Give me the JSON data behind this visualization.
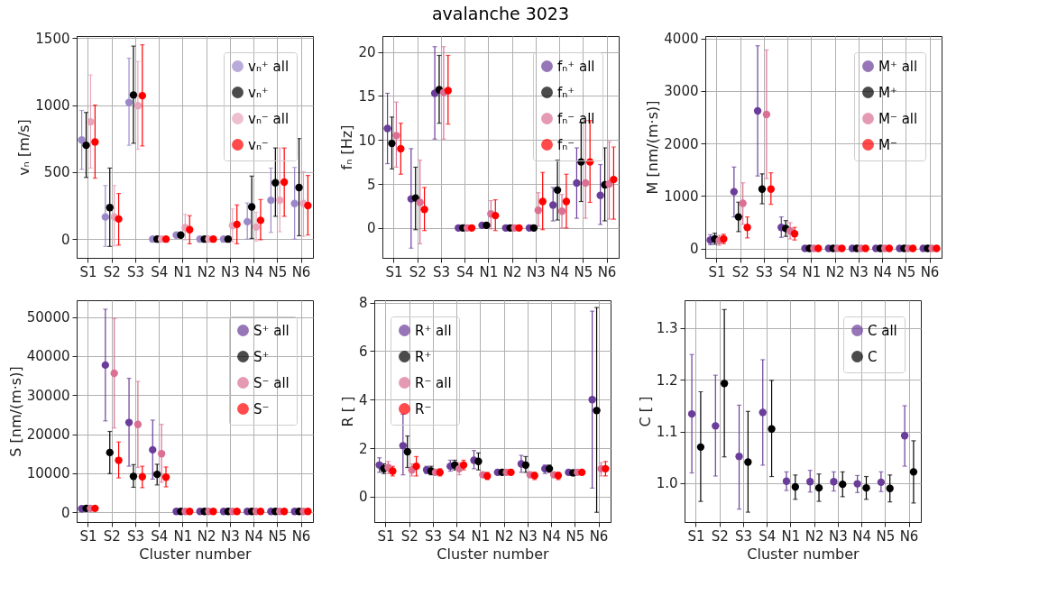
{
  "chart_data": [
    {
      "type": "scatter",
      "ylabel": "vₙ [m/s]",
      "categories": [
        "S1",
        "S2",
        "S3",
        "S4",
        "N1",
        "N2",
        "N3",
        "N4",
        "N5",
        "N6"
      ],
      "ylim": [
        -140,
        1515
      ],
      "yticks": [
        0,
        500,
        1000,
        1500
      ],
      "grid": true,
      "legend": "top right",
      "marker": "circle",
      "series": [
        {
          "name": "vₙ⁺ all",
          "color": "#9c88c9",
          "values": [
            740,
            165,
            1020,
            0,
            30,
            0,
            0,
            130,
            290,
            265
          ],
          "errors": [
            [
              520,
              960
            ],
            [
              -55,
              400
            ],
            [
              700,
              1350
            ],
            null,
            null,
            null,
            null,
            [
              0,
              270
            ],
            [
              50,
              530
            ],
            [
              0,
              535
            ]
          ]
        },
        {
          "name": "vₙ⁺",
          "color": "#000000",
          "values": [
            700,
            235,
            1075,
            0,
            30,
            0,
            0,
            240,
            420,
            385
          ],
          "errors": [
            [
              460,
              945
            ],
            [
              -55,
              530
            ],
            [
              715,
              1440
            ],
            null,
            null,
            null,
            null,
            [
              5,
              470
            ],
            [
              170,
              680
            ],
            [
              25,
              750
            ]
          ]
        },
        {
          "name": "vₙ⁻ all",
          "color": "#e8a4ba",
          "values": [
            875,
            165,
            995,
            0,
            85,
            0,
            100,
            90,
            290,
            265
          ],
          "errors": [
            [
              530,
              1225
            ],
            [
              -50,
              400
            ],
            [
              670,
              1325
            ],
            null,
            [
              -5,
              185
            ],
            null,
            [
              -20,
              225
            ],
            [
              -15,
              200
            ],
            [
              55,
              680
            ],
            [
              20,
              505
            ]
          ]
        },
        {
          "name": "vₙ⁻",
          "color": "#ff0000",
          "values": [
            725,
            150,
            1070,
            0,
            70,
            0,
            110,
            140,
            425,
            250
          ],
          "errors": [
            [
              455,
              1000
            ],
            [
              -45,
              340
            ],
            [
              695,
              1450
            ],
            null,
            [
              -35,
              175
            ],
            null,
            [
              -35,
              255
            ],
            [
              -5,
              295
            ],
            [
              170,
              680
            ],
            [
              30,
              475
            ]
          ]
        }
      ]
    },
    {
      "type": "scatter",
      "title": "avalanche 3023",
      "ylabel": "fₙ [Hz]",
      "categories": [
        "S1",
        "S2",
        "S3",
        "S4",
        "N1",
        "N2",
        "N3",
        "N4",
        "N5",
        "N6"
      ],
      "ylim": [
        -3.4,
        21.8
      ],
      "yticks": [
        0,
        5,
        10,
        15,
        20
      ],
      "grid": true,
      "legend": "top right",
      "marker": "circle",
      "series": [
        {
          "name": "fₙ⁺ all",
          "color": "#6a3d9a",
          "values": [
            11.3,
            3.3,
            15.3,
            0,
            0.3,
            0,
            0,
            2.6,
            5.1,
            3.7
          ],
          "errors": [
            [
              7.3,
              15.3
            ],
            [
              -2.3,
              9.0
            ],
            [
              10.1,
              20.6
            ],
            null,
            null,
            null,
            null,
            [
              0.8,
              4.6
            ],
            [
              1.1,
              9.1
            ],
            [
              0.4,
              7.2
            ]
          ]
        },
        {
          "name": "fₙ⁺",
          "color": "#000000",
          "values": [
            9.6,
            3.4,
            15.7,
            0,
            0.3,
            0,
            0,
            4.3,
            7.5,
            4.9
          ],
          "errors": [
            [
              6.7,
              12.6
            ],
            [
              -0.2,
              6.9
            ],
            [
              11.9,
              19.6
            ],
            null,
            null,
            null,
            null,
            [
              0.9,
              7.7
            ],
            [
              3.0,
              12.0
            ],
            [
              0.8,
              9.1
            ]
          ]
        },
        {
          "name": "fₙ⁻ all",
          "color": "#db7093",
          "values": [
            10.5,
            2.9,
            15.4,
            0,
            1.6,
            0,
            2.0,
            1.9,
            5.1,
            5.0
          ],
          "errors": [
            [
              6.9,
              14.3
            ],
            [
              -1.8,
              7.7
            ],
            [
              10.1,
              20.6
            ],
            null,
            [
              -0.1,
              3.1
            ],
            null,
            [
              0.2,
              4.0
            ],
            [
              0,
              3.8
            ],
            [
              1.1,
              12.2
            ],
            [
              1.0,
              9.8
            ]
          ]
        },
        {
          "name": "fₙ⁻",
          "color": "#ff0000",
          "values": [
            9.0,
            2.1,
            15.6,
            0,
            1.4,
            0,
            3.0,
            3.0,
            7.5,
            5.5
          ],
          "errors": [
            [
              6.1,
              11.9
            ],
            [
              -0.3,
              4.6
            ],
            [
              11.8,
              19.6
            ],
            null,
            [
              -0.3,
              3.2
            ],
            null,
            [
              -0.2,
              6.3
            ],
            [
              0,
              6.1
            ],
            [
              2.9,
              12.2
            ],
            [
              1.0,
              9.2
            ]
          ]
        }
      ]
    },
    {
      "type": "scatter",
      "ylabel": "M  [nm/(m·s)]",
      "categories": [
        "S1",
        "S2",
        "S3",
        "S4",
        "N1",
        "N2",
        "N3",
        "N4",
        "N5",
        "N6"
      ],
      "ylim": [
        -180,
        4045
      ],
      "yticks": [
        0,
        1000,
        2000,
        3000,
        4000
      ],
      "grid": true,
      "legend": "top right",
      "marker": "circle",
      "series": [
        {
          "name": "M⁺ all",
          "color": "#6a3d9a",
          "values": [
            160,
            1080,
            2620,
            400,
            0,
            0,
            0,
            0,
            0,
            0
          ],
          "errors": [
            [
              70,
              260
            ],
            [
              600,
              1550
            ],
            [
              1380,
              3860
            ],
            [
              210,
              600
            ],
            null,
            null,
            null,
            null,
            null,
            null
          ]
        },
        {
          "name": "M⁺",
          "color": "#000000",
          "values": [
            180,
            600,
            1130,
            380,
            0,
            0,
            0,
            0,
            0,
            0
          ],
          "errors": [
            [
              80,
              290
            ],
            [
              320,
              880
            ],
            [
              850,
              1420
            ],
            [
              230,
              530
            ],
            null,
            null,
            null,
            null,
            null,
            null
          ]
        },
        {
          "name": "M⁻ all",
          "color": "#db7093",
          "values": [
            150,
            860,
            2550,
            330,
            0,
            0,
            0,
            0,
            0,
            0
          ],
          "errors": [
            [
              60,
              250
            ],
            [
              460,
              1250
            ],
            [
              1330,
              3780
            ],
            [
              180,
              490
            ],
            null,
            null,
            null,
            null,
            null,
            null
          ]
        },
        {
          "name": "M⁻",
          "color": "#ff0000",
          "values": [
            180,
            400,
            1130,
            280,
            0,
            0,
            0,
            0,
            0,
            0
          ],
          "errors": [
            [
              90,
              270
            ],
            [
              200,
              600
            ],
            [
              840,
              1440
            ],
            [
              160,
              400
            ],
            null,
            null,
            null,
            null,
            null,
            null
          ]
        }
      ]
    },
    {
      "type": "scatter",
      "xlabel": "Cluster number",
      "ylabel": "S [nm/(m·s)]",
      "categories": [
        "S1",
        "S2",
        "S3",
        "S4",
        "N1",
        "N2",
        "N3",
        "N4",
        "N5",
        "N6"
      ],
      "ylim": [
        -2500,
        54300
      ],
      "yticks": [
        0,
        10000,
        20000,
        30000,
        40000,
        50000
      ],
      "grid": true,
      "legend": "top right",
      "marker": "circle",
      "series": [
        {
          "name": "S⁺ all",
          "color": "#6a3d9a",
          "values": [
            900,
            37700,
            23000,
            16000,
            200,
            200,
            200,
            200,
            200,
            200
          ],
          "errors": [
            null,
            [
              23400,
              52000
            ],
            [
              11800,
              34300
            ],
            [
              8500,
              23600
            ],
            null,
            null,
            null,
            null,
            null,
            null
          ]
        },
        {
          "name": "S⁺",
          "color": "#000000",
          "values": [
            1000,
            15300,
            9200,
            9700,
            200,
            200,
            200,
            200,
            200,
            200
          ],
          "errors": [
            null,
            [
              9900,
              20700
            ],
            [
              6400,
              12200
            ],
            [
              7000,
              12300
            ],
            null,
            null,
            null,
            null,
            null,
            null
          ]
        },
        {
          "name": "S⁻ all",
          "color": "#db7093",
          "values": [
            1000,
            35600,
            22500,
            15000,
            200,
            200,
            200,
            200,
            200,
            200
          ],
          "errors": [
            null,
            [
              21600,
              49600
            ],
            [
              11500,
              33500
            ],
            [
              7700,
              22500
            ],
            null,
            null,
            null,
            null,
            null,
            null
          ]
        },
        {
          "name": "S⁻",
          "color": "#ff0000",
          "values": [
            1000,
            13300,
            9100,
            9000,
            200,
            200,
            200,
            200,
            200,
            200
          ],
          "errors": [
            null,
            [
              8800,
              18000
            ],
            [
              6300,
              11800
            ],
            [
              6500,
              11600
            ],
            null,
            null,
            null,
            null,
            null,
            null
          ]
        }
      ]
    },
    {
      "type": "scatter",
      "xlabel": "Cluster number",
      "ylabel": "R [ ]",
      "categories": [
        "S1",
        "S2",
        "S3",
        "S4",
        "N1",
        "N2",
        "N3",
        "N4",
        "N5",
        "N6"
      ],
      "ylim": [
        -1.05,
        8.1
      ],
      "yticks": [
        0,
        2,
        4,
        6,
        8
      ],
      "grid": true,
      "legend": "top left",
      "marker": "circle",
      "series": [
        {
          "name": "R⁺ all",
          "color": "#6a3d9a",
          "values": [
            1.3,
            2.1,
            1.1,
            1.25,
            1.5,
            1.0,
            1.35,
            1.15,
            1.0,
            4.0
          ],
          "errors": [
            [
              1.0,
              1.6
            ],
            [
              0.9,
              3.4
            ],
            [
              0.95,
              1.25
            ],
            [
              1.05,
              1.5
            ],
            [
              1.15,
              1.9
            ],
            [
              0.9,
              1.1
            ],
            [
              1.0,
              1.7
            ],
            [
              0.95,
              1.3
            ],
            [
              0.9,
              1.1
            ],
            [
              0.35,
              7.65
            ]
          ]
        },
        {
          "name": "R⁺",
          "color": "#000000",
          "values": [
            1.15,
            1.85,
            1.05,
            1.3,
            1.45,
            1.0,
            1.3,
            1.15,
            0.98,
            3.55
          ],
          "errors": [
            [
              0.95,
              1.35
            ],
            [
              1.2,
              2.5
            ],
            [
              0.9,
              1.25
            ],
            [
              1.1,
              1.5
            ],
            [
              1.1,
              1.8
            ],
            null,
            [
              1.0,
              1.65
            ],
            [
              1.0,
              1.3
            ],
            null,
            [
              -0.65,
              7.8
            ]
          ]
        },
        {
          "name": "R⁻ all",
          "color": "#db7093",
          "values": [
            1.2,
            1.1,
            1.0,
            1.15,
            0.9,
            1.0,
            0.9,
            0.9,
            1.0,
            1.15
          ],
          "errors": [
            [
              0.95,
              1.45
            ],
            [
              0.85,
              1.35
            ],
            null,
            [
              0.9,
              1.4
            ],
            null,
            null,
            null,
            null,
            null,
            [
              0.85,
              1.4
            ]
          ]
        },
        {
          "name": "R⁻",
          "color": "#ff0000",
          "values": [
            1.05,
            1.25,
            1.0,
            1.3,
            0.85,
            1.0,
            0.87,
            0.87,
            1.0,
            1.15
          ],
          "errors": [
            [
              0.85,
              1.25
            ],
            [
              0.85,
              1.65
            ],
            [
              0.85,
              1.15
            ],
            [
              1.1,
              1.5
            ],
            [
              0.7,
              1.0
            ],
            [
              0.9,
              1.1
            ],
            [
              0.7,
              1.0
            ],
            [
              0.7,
              1.0
            ],
            [
              0.9,
              1.1
            ],
            [
              0.85,
              1.45
            ]
          ]
        }
      ]
    },
    {
      "type": "scatter",
      "xlabel": "Cluster number",
      "ylabel": "C [ ]",
      "categories": [
        "S1",
        "S2",
        "S3",
        "S4",
        "N1",
        "N2",
        "N3",
        "N4",
        "N5",
        "N6"
      ],
      "ylim": [
        0.925,
        1.354
      ],
      "yticks": [
        {
          "value": 1,
          "label": "1.0"
        },
        1.1,
        1.2,
        1.3
      ],
      "grid": true,
      "legend": "top right",
      "marker": "circle",
      "series": [
        {
          "name": "C all",
          "color": "#6a3d9a",
          "values": [
            1.134,
            1.111,
            1.052,
            1.137,
            1.004,
            1.003,
            1.003,
            0.999,
            1.002,
            1.092
          ],
          "errors": [
            [
              1.02,
              1.249
            ],
            [
              1.014,
              1.209
            ],
            [
              0.95,
              1.151
            ],
            [
              1.035,
              1.239
            ],
            [
              0.986,
              1.022
            ],
            [
              0.983,
              1.025
            ],
            [
              0.985,
              1.022
            ],
            [
              0.982,
              1.015
            ],
            [
              0.984,
              1.022
            ],
            [
              1.033,
              1.15
            ]
          ]
        },
        {
          "name": "C",
          "color": "#000000",
          "values": [
            1.07,
            1.193,
            1.041,
            1.105,
            0.993,
            0.991,
            0.998,
            0.991,
            0.99,
            1.022
          ],
          "errors": [
            [
              0.965,
              1.177
            ],
            [
              1.051,
              1.336
            ],
            [
              0.944,
              1.139
            ],
            [
              1.013,
              1.199
            ],
            [
              0.969,
              1.016
            ],
            [
              0.965,
              1.018
            ],
            [
              0.974,
              1.022
            ],
            [
              0.969,
              1.013
            ],
            [
              0.964,
              1.016
            ],
            [
              0.962,
              1.082
            ]
          ]
        }
      ]
    }
  ]
}
